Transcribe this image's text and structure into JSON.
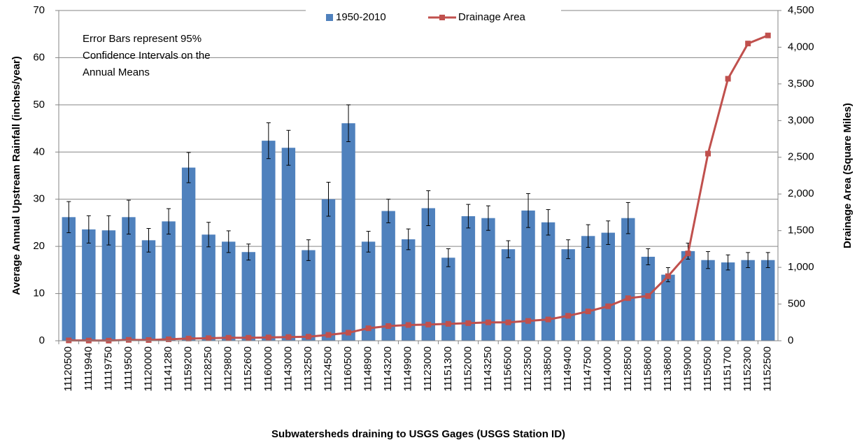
{
  "chart_data": {
    "type": "bar",
    "x_label": "Subwatersheds draining to USGS Gages (USGS Station ID)",
    "y_label": "Average Annual Upstream Rainfall (inches/year)",
    "y2_label": "Drainage Area (Square Miles)",
    "annotation": [
      "Error Bars represent 95%",
      "Confidence Intervals on the",
      "Annual Means"
    ],
    "categories": [
      "11120500",
      "11119940",
      "11119750",
      "11119500",
      "11120000",
      "11141280",
      "11159200",
      "11128250",
      "11129800",
      "11152600",
      "11160000",
      "11143000",
      "11132500",
      "11124500",
      "11160500",
      "11148900",
      "11143200",
      "11149900",
      "11123000",
      "11151300",
      "11152000",
      "11143250",
      "11156500",
      "11123500",
      "11138500",
      "11149400",
      "11147500",
      "11140000",
      "11128500",
      "11158600",
      "11136800",
      "11159000",
      "11150500",
      "11151700",
      "11152300",
      "11152500"
    ],
    "series": [
      {
        "name": "1950-2010",
        "type": "bar",
        "color": "#4f81bd",
        "values": [
          26.2,
          23.6,
          23.4,
          26.2,
          21.3,
          25.3,
          36.7,
          22.5,
          21.0,
          18.8,
          42.4,
          40.9,
          19.2,
          30.0,
          46.1,
          21.0,
          27.5,
          21.5,
          28.1,
          17.6,
          26.4,
          26.0,
          19.4,
          27.6,
          25.1,
          19.4,
          22.2,
          22.9,
          26.0,
          17.8,
          14.0,
          19.0,
          17.1,
          16.6,
          17.1,
          17.1
        ],
        "errors": [
          3.3,
          2.9,
          3.1,
          3.6,
          2.5,
          2.7,
          3.2,
          2.6,
          2.3,
          1.7,
          3.8,
          3.7,
          2.2,
          3.6,
          3.9,
          2.2,
          2.5,
          2.2,
          3.7,
          1.9,
          2.5,
          2.6,
          1.8,
          3.6,
          2.7,
          2.0,
          2.4,
          2.5,
          3.3,
          1.7,
          1.5,
          1.7,
          1.8,
          1.6,
          1.6,
          1.6
        ]
      },
      {
        "name": "Drainage Area",
        "type": "line",
        "color": "#c0504d",
        "axis": "y2",
        "values": [
          5,
          3,
          2,
          12,
          10,
          20,
          30,
          35,
          40,
          40,
          45,
          50,
          55,
          80,
          110,
          170,
          200,
          215,
          220,
          230,
          240,
          250,
          250,
          270,
          290,
          340,
          400,
          470,
          580,
          610,
          880,
          1190,
          2550,
          3570,
          4050,
          4160
        ]
      }
    ],
    "ylim": [
      0,
      70
    ],
    "yticks": [
      0,
      10,
      20,
      30,
      40,
      50,
      60,
      70
    ],
    "y2lim": [
      0,
      4500
    ],
    "y2ticks": [
      0,
      500,
      {
        "value": 1000,
        "label": "1,000"
      },
      {
        "value": 1500,
        "label": "1,500"
      },
      {
        "value": 2000,
        "label": "2,000"
      },
      {
        "value": 2500,
        "label": "2,500"
      },
      {
        "value": 3000,
        "label": "3,000"
      },
      {
        "value": 3500,
        "label": "3,500"
      },
      {
        "value": 4000,
        "label": "4,000"
      },
      {
        "value": 4500,
        "label": "4,500"
      }
    ],
    "grid": true
  }
}
